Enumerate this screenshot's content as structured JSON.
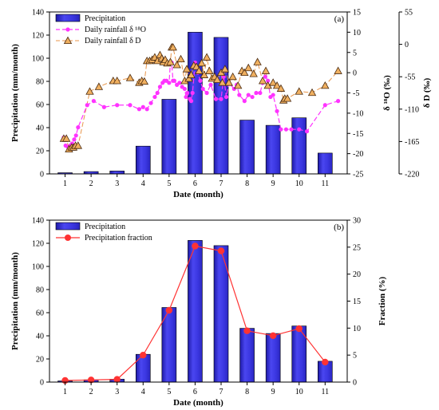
{
  "chart_data": [
    {
      "panel": "(a)",
      "type": "bar",
      "categories": [
        "1",
        "2",
        "3",
        "4",
        "5",
        "6",
        "7",
        "8",
        "9",
        "10",
        "11"
      ],
      "xlabel": "Date (month)",
      "ylabel": "Precipitation (mm/month)",
      "ylim": [
        0,
        140
      ],
      "yticks": [
        0,
        20,
        40,
        60,
        80,
        100,
        120,
        140
      ],
      "y2label": "δ ¹⁸O (‰)",
      "y2lim": [
        -25,
        15
      ],
      "y2ticks": [
        -25,
        -20,
        -15,
        -10,
        -5,
        0,
        5,
        10,
        15
      ],
      "y3label": "δ D (‰)",
      "y3lim": [
        -220,
        55
      ],
      "y3ticks": [
        -220,
        -165,
        -110,
        -55,
        0,
        55
      ],
      "legend_position": "top-left",
      "colors": {
        "bar": "#3a36e0",
        "d18O": "#ff33ff",
        "dD": "#e8964b",
        "dD_marker": "#f0b060"
      },
      "series": [
        {
          "name": "Precipitation",
          "type": "bar",
          "axis": "left",
          "values": [
            1.0,
            2.0,
            2.5,
            24,
            64.5,
            122.5,
            118,
            46.5,
            42,
            48.5,
            18
          ]
        },
        {
          "name": "Daily rainfall δ ¹⁸O",
          "type": "line",
          "axis": "right1",
          "x": [
            0.95,
            1.02,
            1.12,
            1.2,
            1.27,
            1.35,
            1.42,
            1.5,
            1.85,
            2.1,
            2.5,
            3.0,
            3.5,
            3.85,
            4.0,
            4.15,
            4.3,
            4.45,
            4.55,
            4.65,
            4.75,
            4.82,
            4.9,
            5.0,
            5.05,
            5.1,
            5.15,
            5.2,
            5.3,
            5.4,
            5.5,
            5.6,
            5.65,
            5.7,
            5.8,
            5.85,
            5.9,
            6.0,
            6.1,
            6.2,
            6.3,
            6.45,
            6.6,
            6.8,
            7.0,
            7.1,
            7.2,
            7.3,
            7.5,
            7.6,
            7.7,
            7.9,
            8.05,
            8.2,
            8.35,
            8.5,
            8.6,
            8.7,
            8.8,
            8.9,
            9.0,
            9.15,
            9.3,
            9.5,
            9.7,
            10.0,
            10.3,
            11.0,
            11.5
          ],
          "values": [
            -16,
            -18,
            -18.5,
            -18,
            -17.5,
            -16.5,
            -15.5,
            -13.5,
            -8,
            -7,
            -8.5,
            -8,
            -8,
            -9,
            -8.5,
            -9,
            -7.5,
            -6,
            -5,
            -3.5,
            -2.5,
            -2,
            -2,
            -2.5,
            2.5,
            2.5,
            -2,
            -2,
            -3,
            -2.5,
            -3.5,
            -4,
            -6,
            -5,
            -6.5,
            -7,
            -5,
            2.5,
            0,
            -2,
            -4,
            -5,
            -3,
            -6.5,
            -6.5,
            -1,
            -6,
            -2.5,
            -4,
            -3,
            -5.5,
            -7,
            -5.5,
            -6,
            -5,
            -5,
            -2.5,
            -1,
            -2,
            -6,
            -5.5,
            -9.5,
            -14,
            -14,
            -14,
            -14,
            -14.5,
            -8,
            -7
          ]
        },
        {
          "name": "Daily rainfall δ D",
          "type": "line",
          "axis": "right2",
          "x": [
            0.95,
            1.05,
            1.15,
            1.25,
            1.32,
            1.4,
            1.5,
            1.95,
            2.3,
            2.85,
            3.0,
            3.5,
            3.85,
            3.95,
            4.05,
            4.15,
            4.25,
            4.35,
            4.45,
            4.55,
            4.65,
            4.72,
            4.78,
            4.85,
            4.93,
            5.05,
            5.1,
            5.15,
            5.3,
            5.45,
            5.6,
            5.68,
            5.76,
            5.85,
            5.95,
            6.05,
            6.15,
            6.25,
            6.35,
            6.45,
            6.55,
            6.65,
            6.75,
            6.85,
            7.0,
            7.05,
            7.15,
            7.3,
            7.45,
            7.65,
            7.8,
            7.9,
            8.05,
            8.25,
            8.4,
            8.6,
            8.72,
            8.8,
            9.0,
            9.15,
            9.3,
            9.4,
            9.45,
            9.55,
            10.0,
            10.5,
            11.0,
            11.5
          ],
          "values": [
            -160,
            -160,
            -178,
            -175,
            -175,
            -172,
            -172,
            -80,
            -72,
            -62,
            -62,
            -57,
            -65,
            -62,
            -63,
            -28,
            -28,
            -26,
            -22,
            -28,
            -18,
            -24,
            -30,
            -26,
            -32,
            -30,
            -5,
            -5,
            -35,
            -25,
            -62,
            -42,
            -58,
            -52,
            -36,
            -38,
            -45,
            -32,
            -52,
            -22,
            -45,
            -58,
            -55,
            -60,
            -48,
            -65,
            -42,
            -65,
            -55,
            -70,
            -45,
            -48,
            -40,
            -50,
            -30,
            -62,
            -45,
            -70,
            -65,
            -70,
            -75,
            -95,
            -92,
            -92,
            -80,
            -82,
            -70,
            -45
          ]
        }
      ]
    },
    {
      "panel": "(b)",
      "type": "bar",
      "categories": [
        "1",
        "2",
        "3",
        "4",
        "5",
        "6",
        "7",
        "8",
        "9",
        "10",
        "11"
      ],
      "xlabel": "Date (month)",
      "ylabel": "Precipitation (mm/month)",
      "ylim": [
        0,
        140
      ],
      "yticks": [
        0,
        20,
        40,
        60,
        80,
        100,
        120,
        140
      ],
      "y2label": "Fraction (%)",
      "y2lim": [
        0,
        30
      ],
      "y2ticks": [
        0,
        5,
        10,
        15,
        20,
        25,
        30
      ],
      "legend_position": "top-left",
      "colors": {
        "bar": "#3a36e0",
        "fraction": "#ff3333"
      },
      "series": [
        {
          "name": "Precipitation",
          "type": "bar",
          "axis": "left",
          "values": [
            1.0,
            2.0,
            2.5,
            24,
            64.5,
            122.5,
            118,
            46.5,
            42,
            48.5,
            18
          ]
        },
        {
          "name": "Precipitation fraction",
          "type": "line",
          "axis": "right1",
          "values": [
            0.3,
            0.4,
            0.5,
            5.0,
            13.3,
            25.2,
            24.3,
            9.5,
            8.6,
            9.9,
            3.7
          ]
        }
      ]
    }
  ]
}
